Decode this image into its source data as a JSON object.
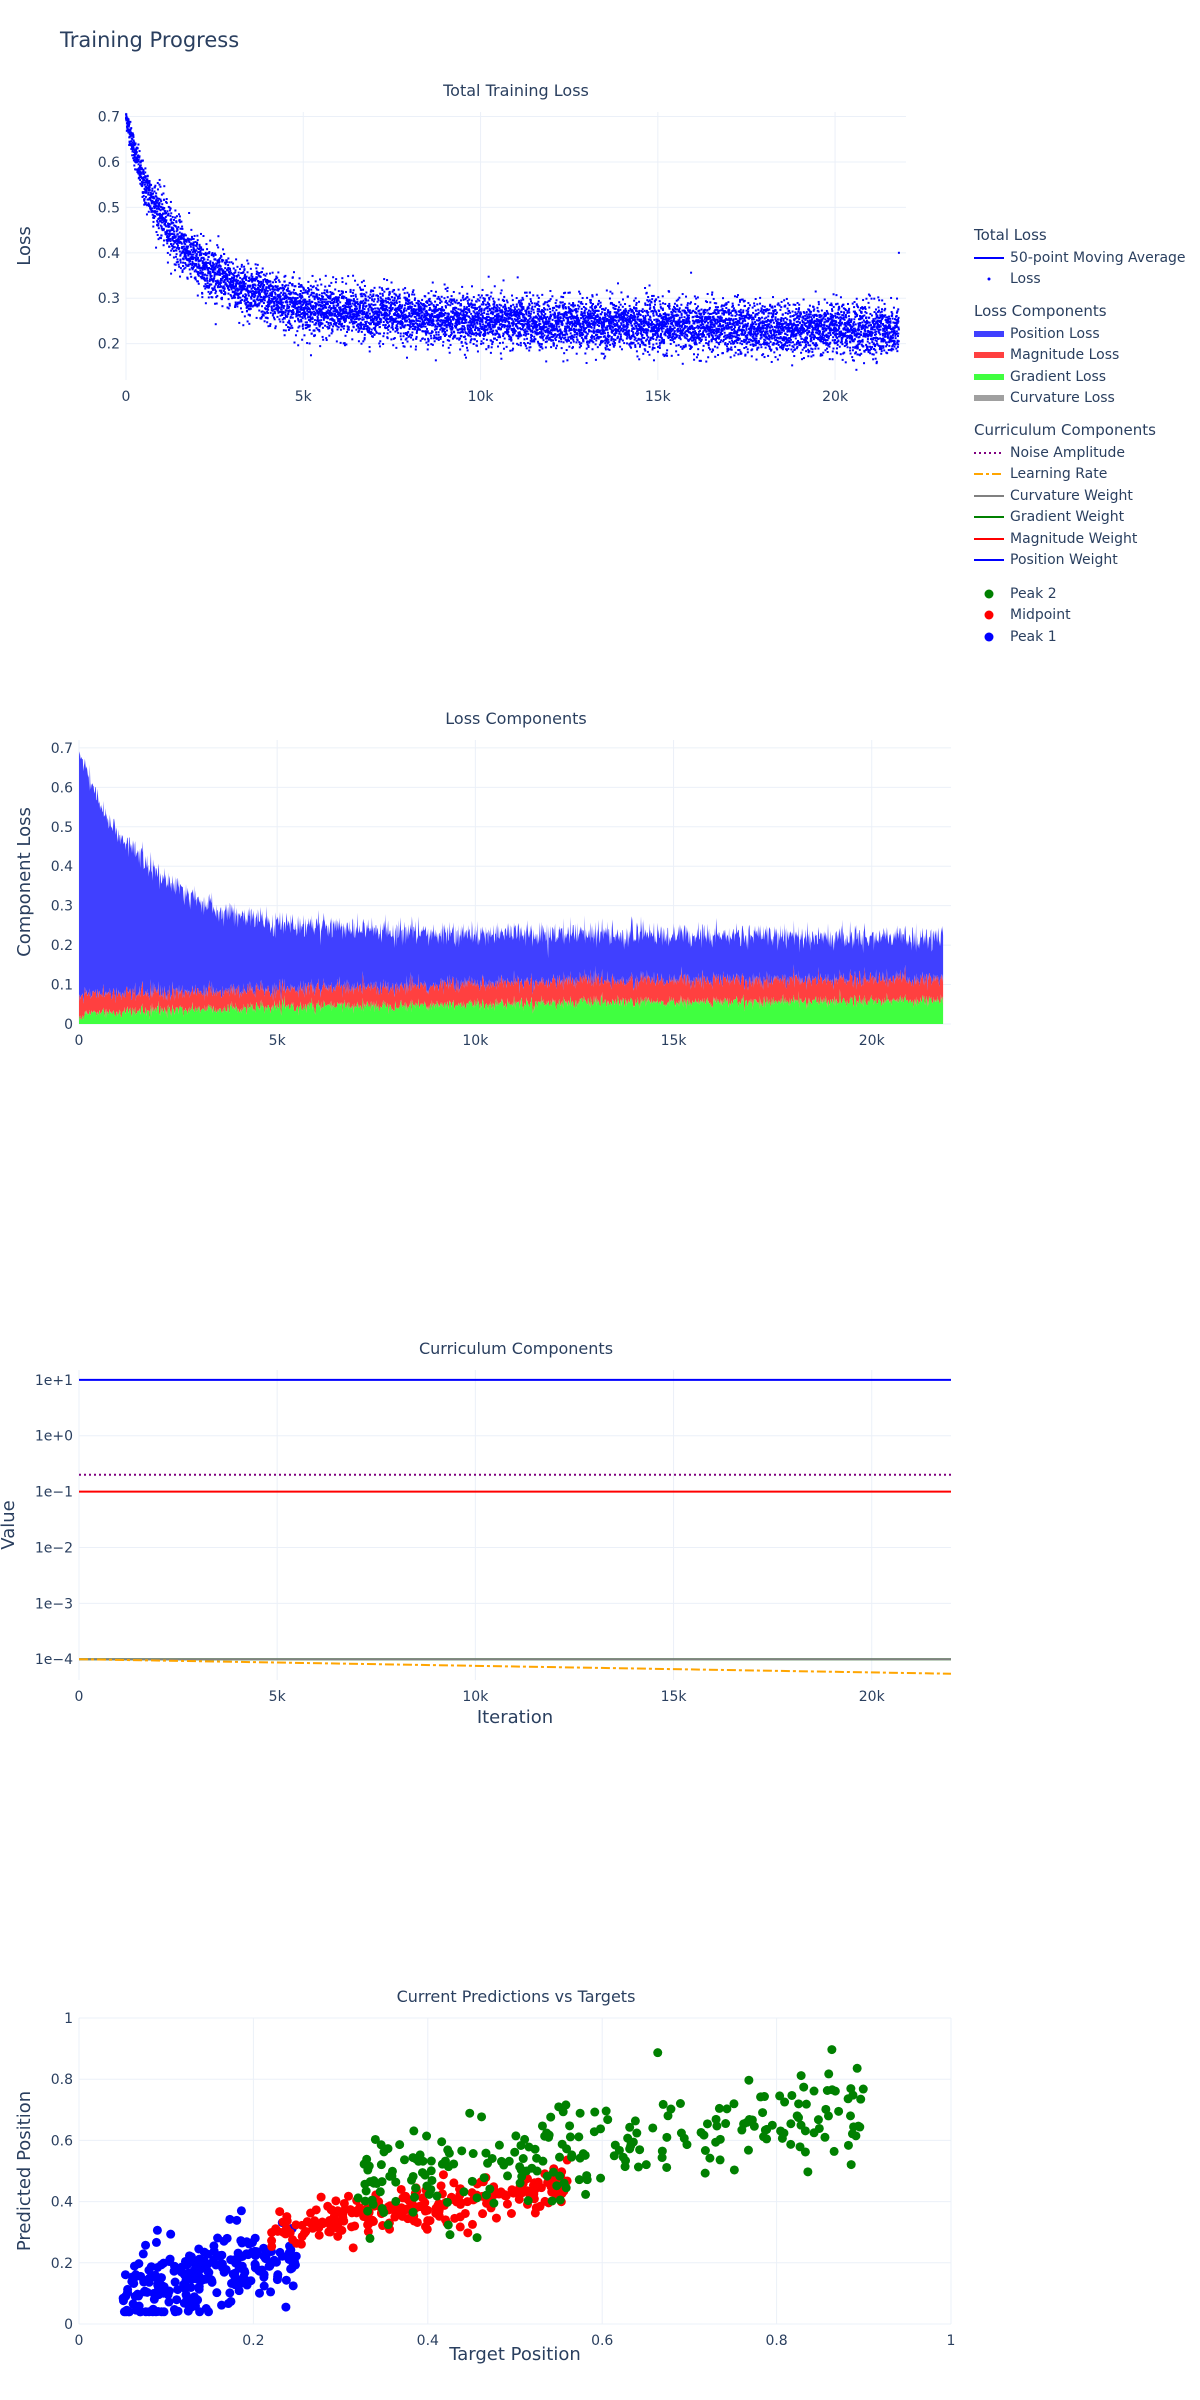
{
  "page": {
    "title": "Training Progress"
  },
  "legend": {
    "groups": [
      {
        "title": "Total Loss",
        "items": [
          {
            "label": "50-point Moving Average",
            "kind": "line",
            "color": "#0000ff",
            "dash": "solid"
          },
          {
            "label": "Loss",
            "kind": "dot",
            "color": "#0000ff"
          }
        ]
      },
      {
        "title": "Loss Components",
        "items": [
          {
            "label": "Position Loss",
            "kind": "area",
            "color": "#4040ff"
          },
          {
            "label": "Magnitude Loss",
            "kind": "area",
            "color": "#ff4040"
          },
          {
            "label": "Gradient Loss",
            "kind": "area",
            "color": "#40ff40"
          },
          {
            "label": "Curvature Loss",
            "kind": "area",
            "color": "#a0a0a0"
          }
        ]
      },
      {
        "title": "Curriculum Components",
        "items": [
          {
            "label": "Noise Amplitude",
            "kind": "line",
            "color": "#800080",
            "dash": "dot"
          },
          {
            "label": "Learning Rate",
            "kind": "line",
            "color": "#ffa500",
            "dash": "dashdot"
          },
          {
            "label": "Curvature Weight",
            "kind": "line",
            "color": "#808080",
            "dash": "solid"
          },
          {
            "label": "Gradient Weight",
            "kind": "line",
            "color": "#008000",
            "dash": "solid"
          },
          {
            "label": "Magnitude Weight",
            "kind": "line",
            "color": "#ff0000",
            "dash": "solid"
          },
          {
            "label": "Position Weight",
            "kind": "line",
            "color": "#0000ff",
            "dash": "solid"
          }
        ]
      },
      {
        "title": "",
        "items": [
          {
            "label": "Peak 2",
            "kind": "dot",
            "color": "#008000"
          },
          {
            "label": "Midpoint",
            "kind": "dot",
            "color": "#ff0000"
          },
          {
            "label": "Peak 1",
            "kind": "dot",
            "color": "#0000ff"
          }
        ]
      }
    ]
  },
  "chart_data": [
    {
      "type": "scatter",
      "title": "Total Training Loss",
      "xlabel": "",
      "ylabel": "Loss",
      "xlim": [
        0,
        22000
      ],
      "ylim": [
        0.12,
        0.71
      ],
      "xticks": [
        0,
        5000,
        10000,
        15000,
        20000
      ],
      "xtick_labels": [
        "0",
        "5k",
        "10k",
        "15k",
        "20k"
      ],
      "yticks": [
        0.2,
        0.3,
        0.4,
        0.5,
        0.6,
        0.7
      ],
      "ytick_labels": [
        "0.2",
        "0.3",
        "0.4",
        "0.5",
        "0.6",
        "0.7"
      ],
      "grid": true,
      "series": [
        {
          "name": "Loss",
          "mode": "markers",
          "color": "#0000ff",
          "x": [
            0,
            250,
            500,
            1000,
            1500,
            2000,
            3000,
            4000,
            5000,
            6000,
            8000,
            10000,
            12000,
            15000,
            18000,
            20000,
            21800
          ],
          "y": [
            0.7,
            0.62,
            0.55,
            0.48,
            0.42,
            0.38,
            0.33,
            0.3,
            0.28,
            0.27,
            0.26,
            0.25,
            0.245,
            0.24,
            0.235,
            0.23,
            0.23
          ],
          "spread": [
            0.02,
            0.03,
            0.04,
            0.05,
            0.05,
            0.05,
            0.05,
            0.05,
            0.05,
            0.05,
            0.05,
            0.05,
            0.05,
            0.05,
            0.05,
            0.05,
            0.05
          ]
        },
        {
          "name": "50-point Moving Average",
          "mode": "lines",
          "color": "#0000ff",
          "x": [
            0,
            250,
            500,
            1000,
            1500,
            2000,
            3000,
            4000,
            5000,
            6000,
            8000,
            10000,
            12000,
            15000,
            18000,
            20000,
            21800
          ],
          "y": [
            0.7,
            0.62,
            0.55,
            0.48,
            0.42,
            0.38,
            0.33,
            0.3,
            0.28,
            0.27,
            0.26,
            0.25,
            0.245,
            0.24,
            0.235,
            0.23,
            0.23
          ]
        }
      ]
    },
    {
      "type": "area",
      "title": "Loss Components",
      "xlabel": "",
      "ylabel": "Component Loss",
      "xlim": [
        0,
        22000
      ],
      "ylim": [
        0,
        0.72
      ],
      "xticks": [
        0,
        5000,
        10000,
        15000,
        20000
      ],
      "xtick_labels": [
        "0",
        "5k",
        "10k",
        "15k",
        "20k"
      ],
      "yticks": [
        0,
        0.1,
        0.2,
        0.3,
        0.4,
        0.5,
        0.6,
        0.7
      ],
      "ytick_labels": [
        "0",
        "0.1",
        "0.2",
        "0.3",
        "0.4",
        "0.5",
        "0.6",
        "0.7"
      ],
      "grid": true,
      "stacked": true,
      "x": [
        0,
        250,
        500,
        1000,
        2000,
        3000,
        4000,
        5000,
        6000,
        8000,
        10000,
        12000,
        15000,
        18000,
        20000,
        21800
      ],
      "series": [
        {
          "name": "Gradient Loss",
          "color": "#40ff40",
          "values": [
            0.01,
            0.03,
            0.03,
            0.03,
            0.035,
            0.038,
            0.04,
            0.042,
            0.045,
            0.048,
            0.05,
            0.055,
            0.055,
            0.058,
            0.06,
            0.06
          ]
        },
        {
          "name": "Magnitude Loss",
          "color": "#ff4040",
          "values": [
            0.05,
            0.05,
            0.05,
            0.05,
            0.045,
            0.045,
            0.045,
            0.045,
            0.048,
            0.05,
            0.052,
            0.055,
            0.055,
            0.055,
            0.055,
            0.055
          ]
        },
        {
          "name": "Position Loss",
          "color": "#4040ff",
          "values": [
            0.62,
            0.55,
            0.48,
            0.4,
            0.3,
            0.23,
            0.19,
            0.17,
            0.155,
            0.14,
            0.125,
            0.12,
            0.115,
            0.11,
            0.105,
            0.105
          ]
        },
        {
          "name": "Curvature Loss",
          "color": "#a0a0a0",
          "values": [
            0,
            0,
            0,
            0,
            0,
            0,
            0,
            0,
            0,
            0,
            0,
            0,
            0,
            0,
            0,
            0
          ]
        }
      ]
    },
    {
      "type": "line",
      "title": "Curriculum Components",
      "xlabel": "Iteration",
      "ylabel": "Value",
      "yscale": "log",
      "xlim": [
        0,
        22000
      ],
      "ylim": [
        4.25e-05,
        15
      ],
      "xticks": [
        0,
        5000,
        10000,
        15000,
        20000
      ],
      "xtick_labels": [
        "0",
        "5k",
        "10k",
        "15k",
        "20k"
      ],
      "yticks": [
        0.0001,
        0.001,
        0.01,
        0.1,
        1,
        10
      ],
      "ytick_labels": [
        "1e−4",
        "1e−3",
        "1e−2",
        "1e−1",
        "1e+0",
        "1e+1"
      ],
      "grid": true,
      "x": [
        0,
        22000
      ],
      "series": [
        {
          "name": "Position Weight",
          "color": "#0000ff",
          "dash": "solid",
          "values": [
            10,
            10
          ]
        },
        {
          "name": "Noise Amplitude",
          "color": "#800080",
          "dash": "dot",
          "values": [
            0.2,
            0.2
          ]
        },
        {
          "name": "Magnitude Weight",
          "color": "#ff0000",
          "dash": "solid",
          "values": [
            0.1,
            0.1
          ]
        },
        {
          "name": "Gradient Weight",
          "color": "#008000",
          "dash": "solid",
          "values": [
            0.0001,
            0.0001
          ]
        },
        {
          "name": "Curvature Weight",
          "color": "#808080",
          "dash": "solid",
          "values": [
            0.0001,
            0.0001
          ]
        },
        {
          "name": "Learning Rate",
          "color": "#ffa500",
          "dash": "dashdot",
          "values": [
            0.0001,
            5.5e-05
          ]
        }
      ]
    },
    {
      "type": "scatter",
      "title": "Current Predictions vs Targets",
      "xlabel": "Target Position",
      "ylabel": "Predicted Position",
      "xlim": [
        0,
        1
      ],
      "ylim": [
        0,
        1
      ],
      "xticks": [
        0,
        0.2,
        0.4,
        0.6,
        0.8,
        1
      ],
      "xtick_labels": [
        "0",
        "0.2",
        "0.4",
        "0.6",
        "0.8",
        "1"
      ],
      "yticks": [
        0,
        0.2,
        0.4,
        0.6,
        0.8,
        1
      ],
      "ytick_labels": [
        "0",
        "0.2",
        "0.4",
        "0.6",
        "0.8",
        "1"
      ],
      "grid": true,
      "series": [
        {
          "name": "Peak 1",
          "color": "#0000ff",
          "x_range": [
            0.05,
            0.25
          ],
          "trend": [
            0.11,
            0.23
          ],
          "spread": 0.07
        },
        {
          "name": "Midpoint",
          "color": "#ff0000",
          "x_range": [
            0.22,
            0.56
          ],
          "trend": [
            0.3,
            0.46
          ],
          "spread": 0.04
        },
        {
          "name": "Peak 2",
          "color": "#008000",
          "x_range": [
            0.32,
            0.9
          ],
          "trend": [
            0.45,
            0.7
          ],
          "spread": 0.09
        }
      ]
    }
  ]
}
